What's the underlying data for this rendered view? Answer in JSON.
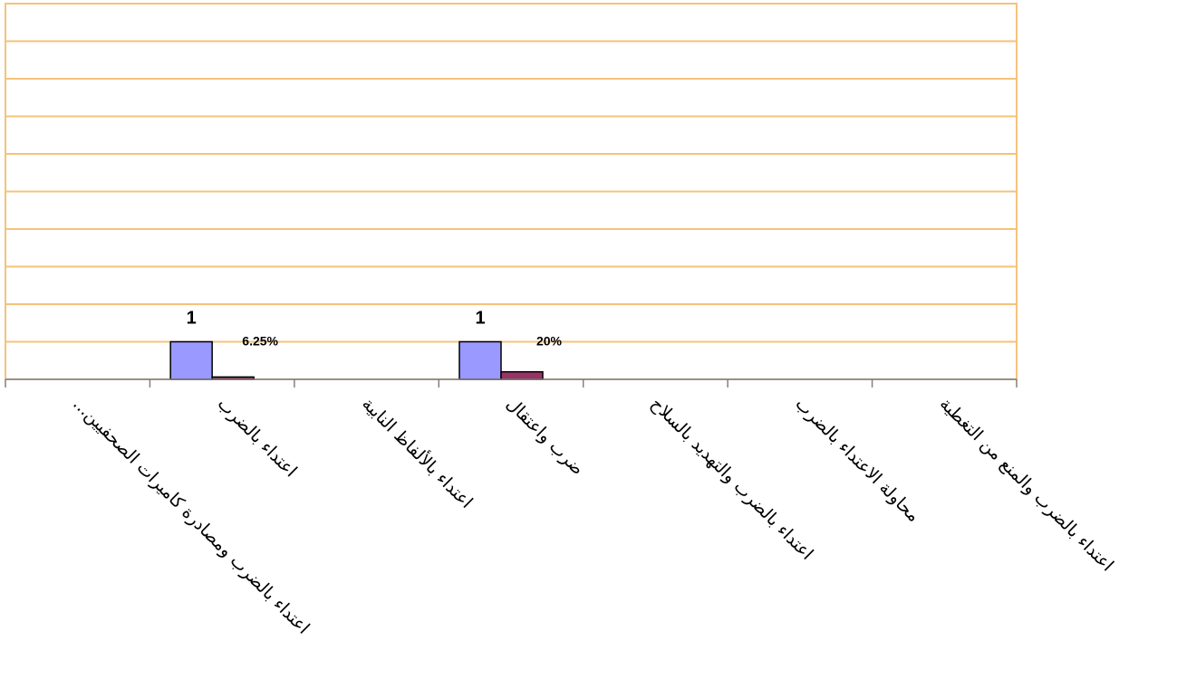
{
  "chart_data": {
    "type": "bar",
    "categories": [
      "اعتداء بالضرب   ومصادرة كاميرات الصحفيين...",
      "اعتداء بالضرب",
      "اعتداء بالألفاظ النابية",
      "ضرب واعتقال",
      "اعتداء بالضرب والتهديد بالسلاح",
      "محاولة الاعتداء بالضرب",
      "اعتداء بالضرب والمنع من التغطية"
    ],
    "series": [
      {
        "values": [
          0,
          1,
          0,
          1,
          0,
          0,
          0
        ],
        "color": "#9999ff",
        "data_labels": [
          "",
          "1",
          "",
          "1",
          "",
          "",
          ""
        ]
      },
      {
        "values": [
          0,
          0.0625,
          0,
          0.2,
          0,
          0,
          0
        ],
        "color": "#993366",
        "data_labels": [
          "",
          "6.25%",
          "",
          "20%",
          "",
          "",
          ""
        ]
      }
    ],
    "ylim": [
      0,
      10
    ],
    "gridlines": true,
    "gridline_color": "#f5c27a",
    "legend": false
  }
}
